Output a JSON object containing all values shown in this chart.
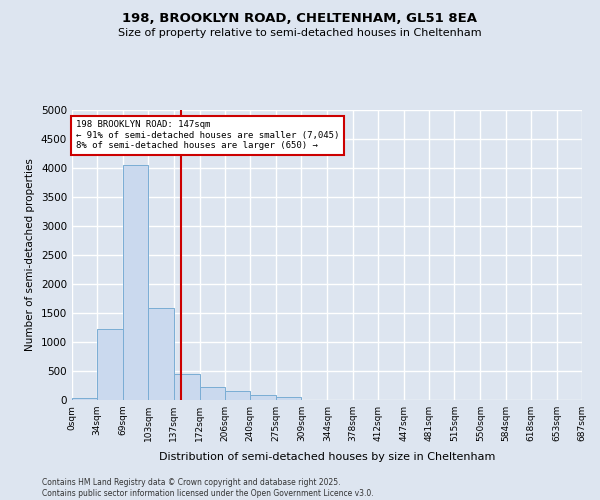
{
  "title1": "198, BROOKLYN ROAD, CHELTENHAM, GL51 8EA",
  "title2": "Size of property relative to semi-detached houses in Cheltenham",
  "xlabel": "Distribution of semi-detached houses by size in Cheltenham",
  "ylabel": "Number of semi-detached properties",
  "bin_edges": [
    0,
    34,
    69,
    103,
    137,
    172,
    206,
    240,
    275,
    309,
    344,
    378,
    412,
    447,
    481,
    515,
    550,
    584,
    618,
    653,
    687
  ],
  "bin_labels": [
    "0sqm",
    "34sqm",
    "69sqm",
    "103sqm",
    "137sqm",
    "172sqm",
    "206sqm",
    "240sqm",
    "275sqm",
    "309sqm",
    "344sqm",
    "378sqm",
    "412sqm",
    "447sqm",
    "481sqm",
    "515sqm",
    "550sqm",
    "584sqm",
    "618sqm",
    "653sqm",
    "687sqm"
  ],
  "bar_heights": [
    30,
    1230,
    4050,
    1590,
    440,
    220,
    160,
    80,
    50,
    0,
    0,
    0,
    0,
    0,
    0,
    0,
    0,
    0,
    0,
    0
  ],
  "bar_color": "#cad9ee",
  "bar_edge_color": "#7aadd4",
  "property_size": 147,
  "property_label": "198 BROOKLYN ROAD: 147sqm",
  "pct_smaller": 91,
  "n_smaller": 7045,
  "pct_larger": 8,
  "n_larger": 650,
  "vline_color": "#cc0000",
  "annotation_box_color": "#cc0000",
  "background_color": "#dde5f0",
  "grid_color": "#ffffff",
  "ylim": [
    0,
    5000
  ],
  "yticks": [
    0,
    500,
    1000,
    1500,
    2000,
    2500,
    3000,
    3500,
    4000,
    4500,
    5000
  ],
  "footnote": "Contains HM Land Registry data © Crown copyright and database right 2025.\nContains public sector information licensed under the Open Government Licence v3.0."
}
